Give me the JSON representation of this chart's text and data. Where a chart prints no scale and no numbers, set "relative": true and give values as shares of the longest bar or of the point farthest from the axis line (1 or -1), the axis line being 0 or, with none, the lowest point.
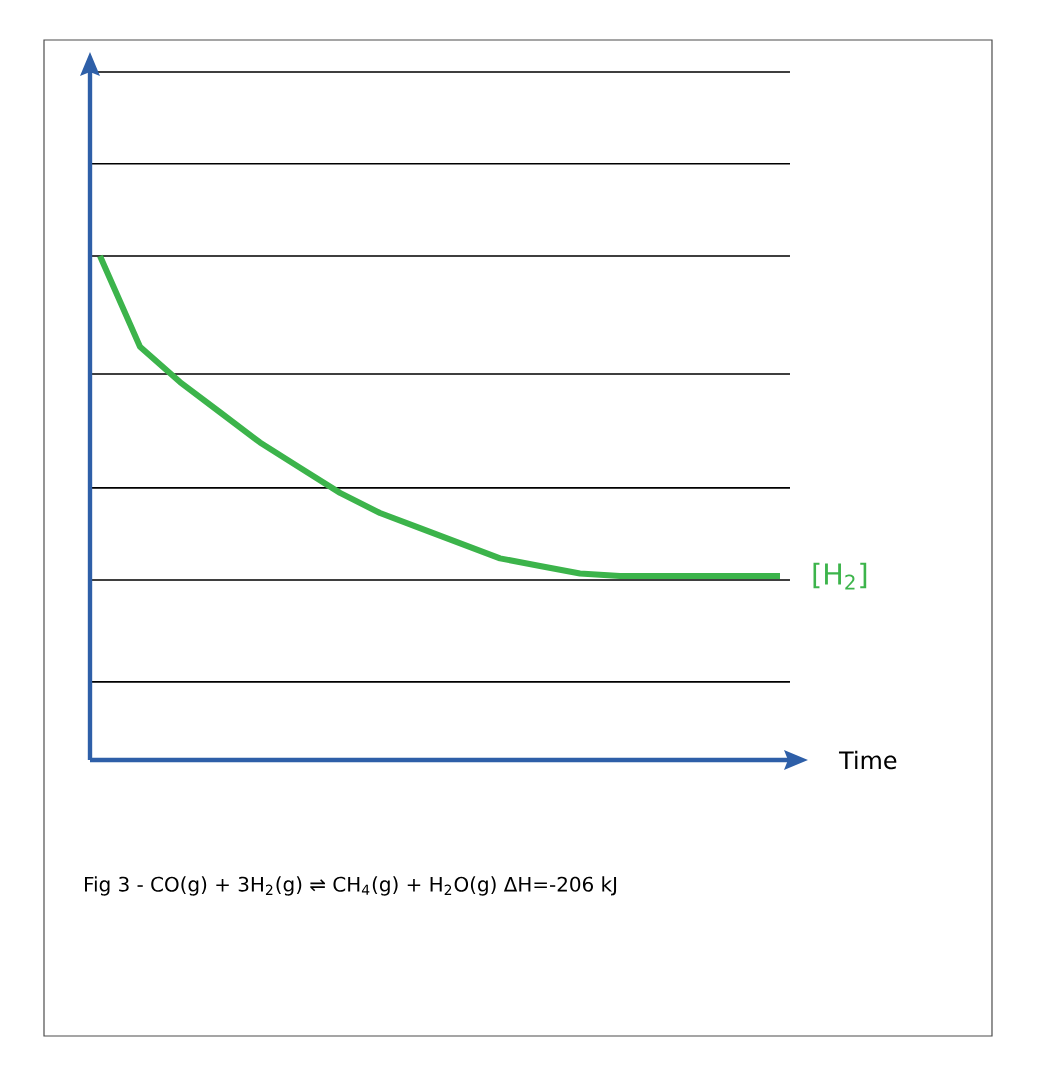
{
  "chart_data": {
    "type": "line",
    "relative": true,
    "xlabel": "Time",
    "grid": "y",
    "legend": false,
    "marker": "none",
    "line_style": "solid",
    "categories": [
      null,
      null,
      null,
      null,
      null,
      null,
      null,
      null,
      null,
      null,
      null,
      null,
      null,
      null,
      null,
      null,
      null,
      null
    ],
    "series": [
      {
        "name": "[H$_{2}$]",
        "color": "#3cb44b",
        "values": [
          1.0,
          0.82,
          0.75,
          0.69,
          0.63,
          0.58,
          0.53,
          0.49,
          0.46,
          0.43,
          0.4,
          0.385,
          0.37,
          0.365,
          0.365,
          0.365,
          0.365,
          0.365
        ]
      }
    ],
    "annotations": [
      "Fig 3 -  CO(g) + 3H$_{2}$(g)  ⇌ CH$_{4}$(g) + H$_{2}$O(g) ΔH=-206 kJ"
    ]
  }
}
